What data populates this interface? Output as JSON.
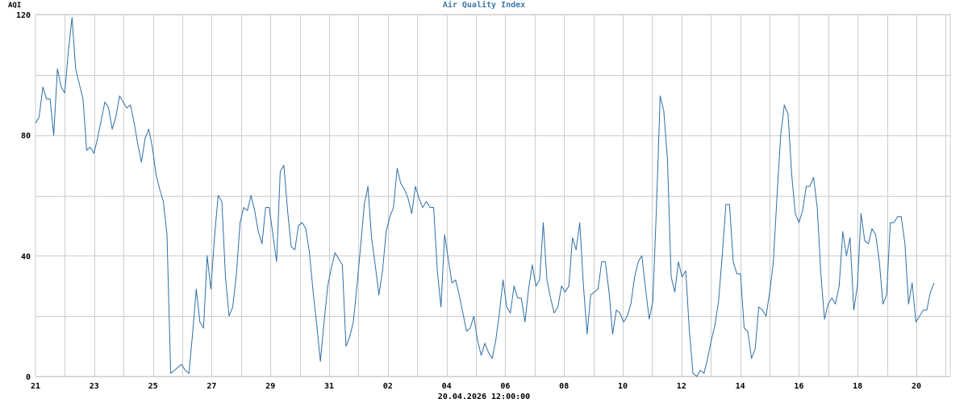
{
  "chart_data": {
    "type": "line",
    "title": "Air Quality Index",
    "ylabel": "AQI",
    "xlabel": "20.04.2026 12:00:00",
    "ylim": [
      0,
      120
    ],
    "yticks": [
      0,
      40,
      80,
      120
    ],
    "grid": true,
    "line_color": "#2e6fa7",
    "grid_color": "#cccccc",
    "xtick_labels": [
      "21",
      "23",
      "25",
      "27",
      "29",
      "31",
      "02",
      "04",
      "06",
      "08",
      "10",
      "12",
      "14",
      "16",
      "18",
      "20"
    ],
    "series": [
      {
        "values": [
          84,
          86,
          96,
          92,
          92,
          80,
          102,
          96,
          94,
          108,
          119,
          102,
          97,
          92,
          75,
          76,
          74,
          79,
          85,
          91,
          89,
          82,
          86,
          93,
          91,
          89,
          90,
          84,
          77,
          71,
          79,
          82,
          76,
          67,
          62,
          58,
          47,
          1,
          2,
          3,
          4,
          2,
          1,
          14,
          29,
          18,
          16,
          40,
          29,
          46,
          60,
          58,
          33,
          20,
          23,
          34,
          51,
          56,
          55,
          60,
          55,
          48,
          44,
          56,
          56,
          47,
          38,
          68,
          70,
          55,
          43,
          42,
          50,
          51,
          49,
          41,
          28,
          17,
          5,
          18,
          30,
          36,
          41,
          39,
          37,
          10,
          13,
          18,
          30,
          43,
          57,
          63,
          46,
          37,
          27,
          35,
          48,
          53,
          56,
          69,
          64,
          62,
          59,
          54,
          63,
          59,
          56,
          58,
          56,
          56,
          35,
          23,
          47,
          39,
          31,
          32,
          27,
          21,
          15,
          16,
          20,
          12,
          7,
          11,
          8,
          6,
          12,
          21,
          32,
          23,
          21,
          30,
          26,
          26,
          18,
          29,
          37,
          30,
          32,
          51,
          32,
          26,
          21,
          23,
          30,
          28,
          30,
          46,
          42,
          51,
          30,
          14,
          27,
          28,
          29,
          38,
          38,
          28,
          14,
          22,
          21,
          18,
          20,
          24,
          33,
          38,
          40,
          29,
          19,
          25,
          56,
          93,
          88,
          72,
          33,
          28,
          38,
          33,
          35,
          15,
          1,
          0,
          2,
          1,
          6,
          12,
          17,
          25,
          40,
          57,
          57,
          38,
          34,
          34,
          16,
          15,
          6,
          9,
          23,
          22,
          20,
          28,
          38,
          60,
          80,
          90,
          87,
          67,
          54,
          51,
          55,
          63,
          63,
          66,
          56,
          34,
          19,
          24,
          26,
          24,
          30,
          48,
          40,
          46,
          22,
          30,
          54,
          45,
          44,
          49,
          47,
          38,
          24,
          27,
          51,
          51,
          53,
          53,
          44,
          24,
          31,
          18,
          20,
          22,
          22,
          28,
          31
        ]
      }
    ]
  }
}
